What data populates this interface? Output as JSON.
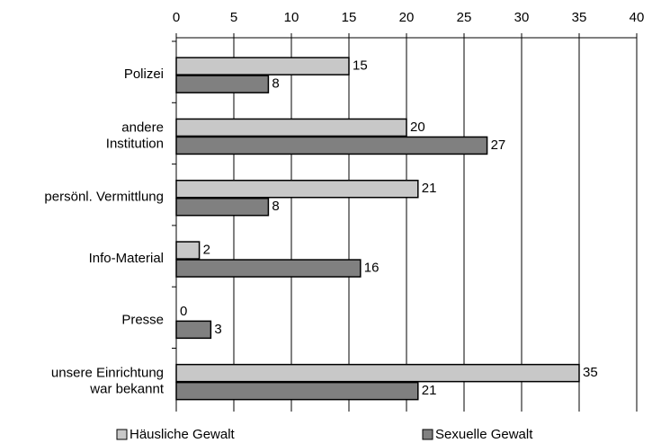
{
  "chart_data": {
    "type": "barh",
    "categories": [
      "Polizei",
      "andere\nInstitution",
      "persönl. Vermittlung",
      "Info-Material",
      "Presse",
      "unsere Einrichtung\nwar bekannt"
    ],
    "series": [
      {
        "name": "Häusliche Gewalt",
        "color": "#c8c8c8",
        "values": [
          15,
          20,
          21,
          2,
          0,
          35
        ]
      },
      {
        "name": "Sexuelle Gewalt",
        "color": "#808080",
        "values": [
          8,
          27,
          8,
          16,
          3,
          21
        ]
      }
    ],
    "xlim": [
      0,
      40
    ],
    "xticks": [
      0,
      5,
      10,
      15,
      20,
      25,
      30,
      35,
      40
    ],
    "grid": true
  }
}
